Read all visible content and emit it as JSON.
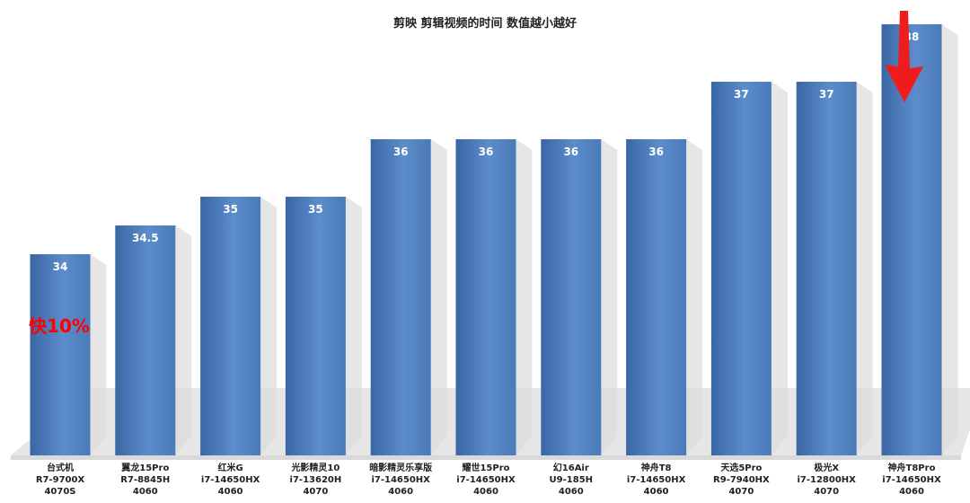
{
  "chart_data": {
    "type": "bar",
    "title": "剪映 剪辑视频的时间  数值越小越好",
    "categories": [
      [
        "台式机",
        "R7-9700X",
        "4070S"
      ],
      [
        "翼龙15Pro",
        "R7-8845H",
        "4060"
      ],
      [
        "红米G",
        "i7-14650HX",
        "4060"
      ],
      [
        "光影精灵10",
        "i7-13620H",
        "4070"
      ],
      [
        "暗影精灵乐享版",
        "i7-14650HX",
        "4060"
      ],
      [
        "耀世15Pro",
        "i7-14650HX",
        "4060"
      ],
      [
        "幻16Air",
        "U9-185H",
        "4060"
      ],
      [
        "神舟T8",
        "i7-14650HX",
        "4060"
      ],
      [
        "天选5Pro",
        "R9-7940HX",
        "4070"
      ],
      [
        "极光X",
        "i7-12800HX",
        "4070"
      ],
      [
        "神舟T8Pro",
        "i7-14650HX",
        "4060"
      ]
    ],
    "values": [
      34,
      34.5,
      35,
      35,
      36,
      36,
      36,
      36,
      37,
      37,
      38
    ],
    "value_labels": [
      "34",
      "34.5",
      "35",
      "35",
      "36",
      "36",
      "36",
      "36",
      "37",
      "37",
      "38"
    ],
    "ylim": [
      30.5,
      38.5
    ],
    "grid": false,
    "legend": "none",
    "annotation": "快10%",
    "highlight_index": 10,
    "colors": {
      "bar": "#4a7ab8",
      "bar_light": "#5d8ccb",
      "bar_dark": "#3a66a4",
      "value_label": "#ffffff",
      "axis_text": "#222222",
      "annotation": "#ff0000",
      "arrow": "#ee1c1c",
      "floor": "#d9d9d9",
      "shadow": "#e6e6e6",
      "background": "#ffffff"
    }
  }
}
